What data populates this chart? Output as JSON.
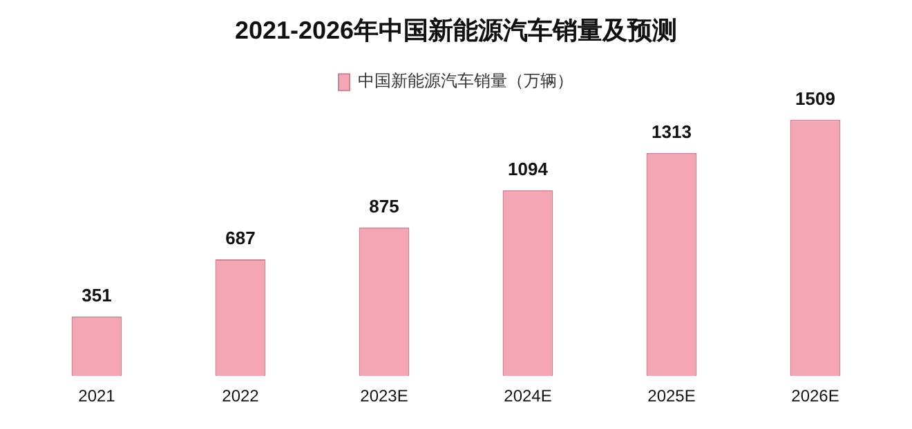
{
  "chart_data": {
    "type": "bar",
    "title": "2021-2026年中国新能源汽车销量及预测",
    "categories": [
      "2021",
      "2022",
      "2023E",
      "2024E",
      "2025E",
      "2026E"
    ],
    "series": [
      {
        "name": "中国新能源汽车销量（万辆）",
        "color": "#f4a6b4",
        "values": [
          351,
          687,
          875,
          1094,
          1313,
          1509
        ]
      }
    ],
    "data_labels": true,
    "legend": "top",
    "grid": false
  }
}
